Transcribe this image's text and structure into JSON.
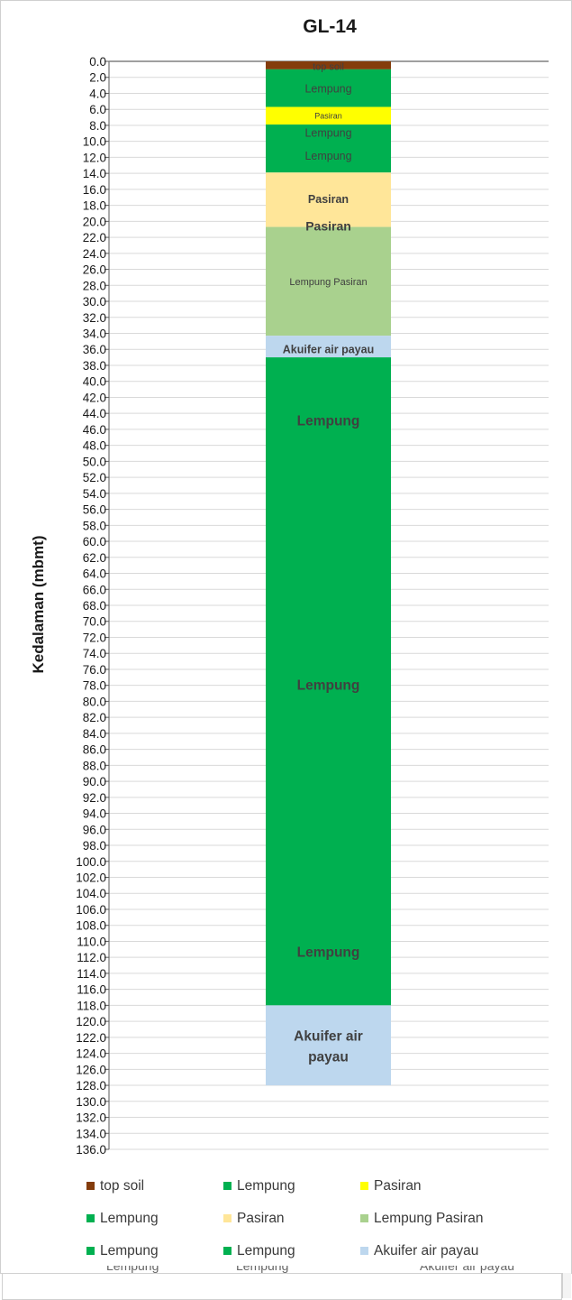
{
  "chart_data": {
    "type": "bar",
    "title": "GL-14",
    "ylabel": "Kedalaman (mbmt)",
    "xlabel": "",
    "ylim": [
      0,
      136
    ],
    "y_inverted": true,
    "grid": true,
    "ytick_labels": [
      "0.0",
      "2.0",
      "4.0",
      "6.0",
      "8.0",
      "10.0",
      "12.0",
      "14.0",
      "16.0",
      "18.0",
      "20.0",
      "22.0",
      "24.0",
      "26.0",
      "28.0",
      "30.0",
      "32.0",
      "34.0",
      "36.0",
      "38.0",
      "40.0",
      "42.0",
      "44.0",
      "46.0",
      "48.0",
      "50.0",
      "52.0",
      "54.0",
      "56.0",
      "58.0",
      "60.0",
      "62.0",
      "64.0",
      "66.0",
      "68.0",
      "70.0",
      "72.0",
      "74.0",
      "76.0",
      "78.0",
      "80.0",
      "82.0",
      "84.0",
      "86.0",
      "88.0",
      "90.0",
      "92.0",
      "94.0",
      "96.0",
      "98.0",
      "100.0",
      "102.0",
      "104.0",
      "106.0",
      "108.0",
      "110.0",
      "112.0",
      "114.0",
      "116.0",
      "118.0",
      "120.0",
      "122.0",
      "124.0",
      "126.0",
      "128.0",
      "130.0",
      "132.0",
      "134.0",
      "136.0"
    ],
    "series": [
      {
        "name": "top soil",
        "from": 0.0,
        "to": 1.0,
        "color": "#843C0C",
        "label": "top soil"
      },
      {
        "name": "Lempung",
        "from": 1.0,
        "to": 5.7,
        "color": "#00B050",
        "label": "Lempung"
      },
      {
        "name": "Pasiran",
        "from": 5.7,
        "to": 7.9,
        "color": "#FFFF00",
        "label": "Pasiran"
      },
      {
        "name": "Lempung",
        "from": 7.9,
        "to": 13.9,
        "color": "#00B050",
        "label": "Lempung"
      },
      {
        "name": "Pasiran",
        "from": 13.9,
        "to": 20.7,
        "color": "#FFE699",
        "label": "Pasiran"
      },
      {
        "name": "Lempung Pasiran",
        "from": 20.7,
        "to": 34.3,
        "color": "#A9D18E",
        "label": "Lempung Pasiran"
      },
      {
        "name": "Akuifer air payau",
        "from": 34.3,
        "to": 37.0,
        "color": "#BDD7EE",
        "label": "Akuifer air payau"
      },
      {
        "name": "Lempung",
        "from": 37.0,
        "to": 118.0,
        "color": "#00B050",
        "label": "Lempung"
      },
      {
        "name": "Akuifer air payau",
        "from": 118.0,
        "to": 128.0,
        "color": "#BDD7EE",
        "label": "Akuifer air payau"
      }
    ],
    "bar_labels": [
      {
        "text": "top soil",
        "y": 0.6,
        "size": "xs",
        "bold": false
      },
      {
        "text": "Lempung",
        "y": 3.4,
        "size": "s",
        "bold": false
      },
      {
        "text": "Pasiran",
        "y": 6.8,
        "size": "xxs",
        "bold": false
      },
      {
        "text": "Lempung",
        "y": 8.9,
        "size": "s",
        "bold": false
      },
      {
        "text": "Lempung",
        "y": 11.8,
        "size": "s",
        "bold": false
      },
      {
        "text": "Pasiran",
        "y": 17.2,
        "size": "s",
        "bold": true
      },
      {
        "text": "Pasiran",
        "y": 20.6,
        "size": "m",
        "bold": true
      },
      {
        "text": "Lempung Pasiran",
        "y": 27.5,
        "size": "xs",
        "bold": false
      },
      {
        "text": "Akuifer air payau",
        "y": 36.0,
        "size": "s",
        "bold": true
      },
      {
        "text": "Lempung",
        "y": 44.9,
        "size": "l",
        "bold": true
      },
      {
        "text": "Lempung",
        "y": 77.9,
        "size": "l",
        "bold": true
      },
      {
        "text": "Lempung",
        "y": 111.3,
        "size": "l",
        "bold": true
      },
      {
        "text": "Akuifer air",
        "y": 121.8,
        "size": "l",
        "bold": true
      },
      {
        "text": "payau",
        "y": 124.4,
        "size": "l",
        "bold": true
      }
    ],
    "legend": [
      {
        "name": "top soil",
        "color": "#843C0C"
      },
      {
        "name": "Lempung",
        "color": "#00B050"
      },
      {
        "name": "Pasiran",
        "color": "#FFFF00"
      },
      {
        "name": "Lempung",
        "color": "#00B050"
      },
      {
        "name": "Pasiran",
        "color": "#FFE699"
      },
      {
        "name": "Lempung Pasiran",
        "color": "#A9D18E"
      },
      {
        "name": "Lempung",
        "color": "#00B050"
      },
      {
        "name": "Lempung",
        "color": "#00B050"
      },
      {
        "name": "Akuifer air payau",
        "color": "#BDD7EE"
      }
    ],
    "legend_position": "bottom",
    "truncated_legend_texts": [
      "Lempung",
      "Lempung",
      "Akuifer air payau"
    ]
  }
}
